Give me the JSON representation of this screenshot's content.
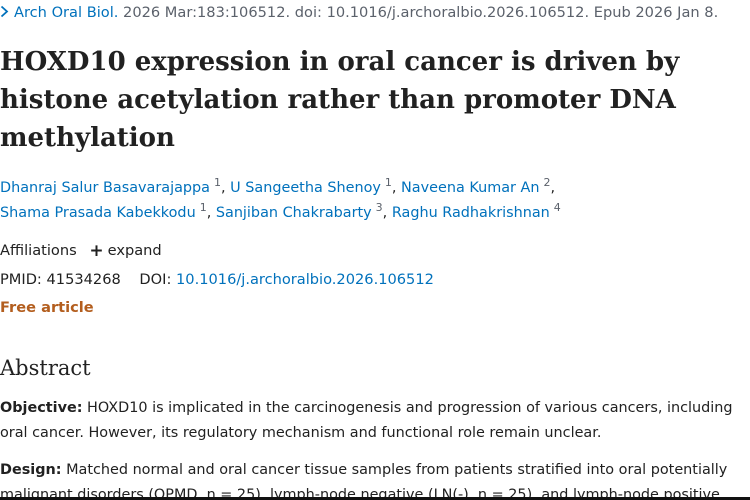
{
  "citation": {
    "journal": "Arch Oral Biol.",
    "details": "2026 Mar:183:106512. doi: 10.1016/j.archoralbio.2026.106512. Epub 2026 Jan 8."
  },
  "article": {
    "title": "HOXD10 expression in oral cancer is driven by histone acetylation rather than promoter DNA methylation",
    "authors": [
      {
        "name": "Dhanraj Salur Basavarajappa",
        "aff": "1"
      },
      {
        "name": "U Sangeetha Shenoy",
        "aff": "1"
      },
      {
        "name": "Naveena Kumar An",
        "aff": "2"
      },
      {
        "name": "Shama Prasada Kabekkodu",
        "aff": "1"
      },
      {
        "name": "Sanjiban Chakrabarty",
        "aff": "3"
      },
      {
        "name": "Raghu Radhakrishnan",
        "aff": "4"
      }
    ],
    "affiliations_label": "Affiliations",
    "expand_label": "expand",
    "pmid_label": "PMID:",
    "pmid": "41534268",
    "doi_label": "DOI:",
    "doi": "10.1016/j.archoralbio.2026.106512",
    "free_label": "Free article"
  },
  "abstract": {
    "heading": "Abstract",
    "objective_label": "Objective:",
    "objective_text": "HOXD10 is implicated in the carcinogenesis and progression of various cancers, including oral cancer. However, its regulatory mechanism and functional role remain unclear.",
    "design_label": "Design:",
    "design_text": "Matched normal and oral cancer tissue samples from patients stratified into oral potentially malignant disorders (OPMD, n = 25), lymph-node negative (LN(-), n = 25), and lymph-node positive"
  },
  "colors": {
    "link": "#0071bc",
    "free_article": "#b35e1e",
    "text": "#212121"
  }
}
